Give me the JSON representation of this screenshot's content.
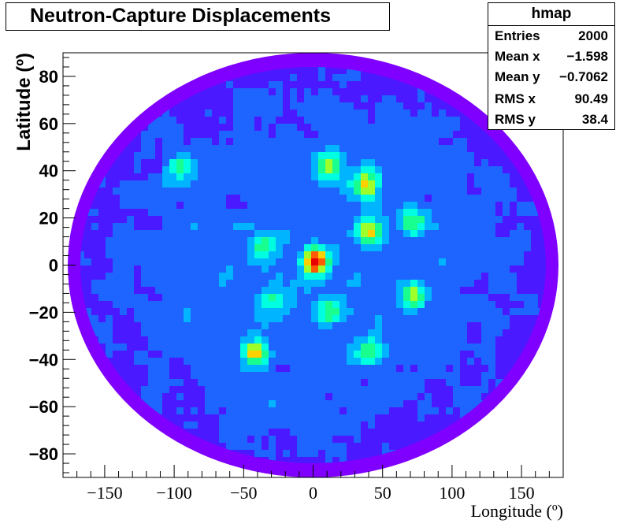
{
  "title": "Neutron-Capture Displacements",
  "stats": {
    "name": "hmap",
    "rows": [
      {
        "label": "Entries",
        "value": "2000"
      },
      {
        "label": "Mean x",
        "value": "−1.598"
      },
      {
        "label": "Mean y",
        "value": "−0.7062"
      },
      {
        "label": "RMS x",
        "value": "90.49"
      },
      {
        "label": "RMS y",
        "value": "38.4"
      }
    ]
  },
  "chart_data": {
    "type": "heatmap",
    "title": "Neutron-Capture Displacements",
    "xlabel": "Longitude (º)",
    "ylabel": "Latitude (º)",
    "xlim": [
      -180,
      180
    ],
    "ylim": [
      -90,
      90
    ],
    "projection": "aitoff",
    "xticks": [
      -150,
      -100,
      -50,
      0,
      50,
      100,
      150
    ],
    "yticks": [
      -80,
      -60,
      -40,
      -20,
      0,
      20,
      40,
      60,
      80
    ],
    "x_tick_labels": [
      "−150",
      "−100",
      "−50",
      "0",
      "50",
      "100",
      "150"
    ],
    "y_tick_labels": [
      "−80",
      "−60",
      "−40",
      "−20",
      "0",
      "20",
      "40",
      "60",
      "80"
    ],
    "colors": [
      "#8000ff",
      "#4b19ff",
      "#1e64ff",
      "#00b4ff",
      "#00ffe0",
      "#18ff90",
      "#9eff2a",
      "#ffd000",
      "#ff5a00",
      "#e60000"
    ],
    "hotspots": [
      {
        "lon": 2,
        "lat": 2,
        "level": 9
      },
      {
        "lon": 38,
        "lat": 34,
        "level": 7
      },
      {
        "lon": 41,
        "lat": 14,
        "level": 6
      },
      {
        "lon": -42,
        "lat": -37,
        "level": 7
      },
      {
        "lon": 72,
        "lat": -13,
        "level": 6
      },
      {
        "lon": 40,
        "lat": -36,
        "level": 5
      },
      {
        "lon": 12,
        "lat": 42,
        "level": 6
      },
      {
        "lon": -95,
        "lat": 42,
        "level": 5
      },
      {
        "lon": 72,
        "lat": 18,
        "level": 5
      },
      {
        "lon": -35,
        "lat": 8,
        "level": 5
      },
      {
        "lon": 12,
        "lat": -20,
        "level": 5
      },
      {
        "lon": -30,
        "lat": -15,
        "level": 4
      }
    ],
    "grid": false
  }
}
